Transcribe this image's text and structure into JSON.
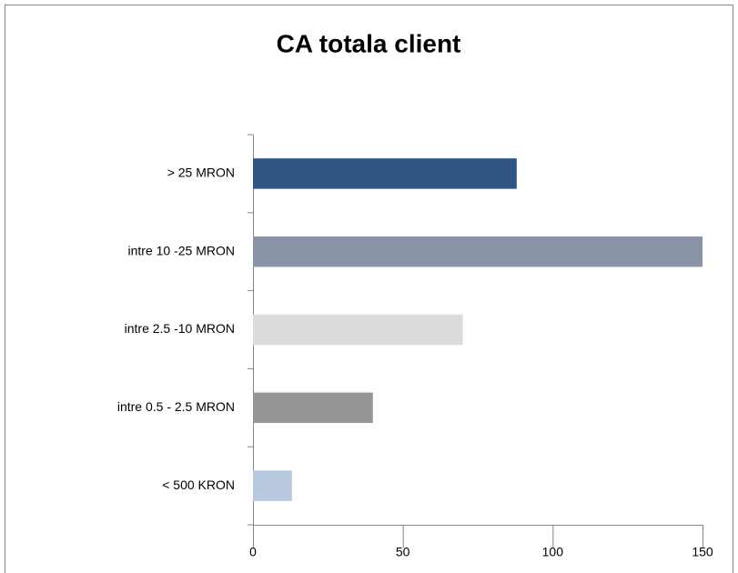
{
  "chart_data": {
    "type": "barh",
    "title": "CA totala client",
    "categories": [
      "> 25 MRON",
      "intre 10 -25 MRON",
      "intre 2.5 -10 MRON",
      "intre 0.5 - 2.5 MRON",
      "< 500 KRON"
    ],
    "values": [
      88,
      150,
      70,
      40,
      13
    ],
    "colors": [
      "#2e5584",
      "#8b93a6",
      "#dcdcdc",
      "#969696",
      "#b8c8de"
    ],
    "xlim": [
      0,
      150
    ],
    "xticks": [
      0,
      50,
      100,
      150
    ],
    "grid": false
  }
}
